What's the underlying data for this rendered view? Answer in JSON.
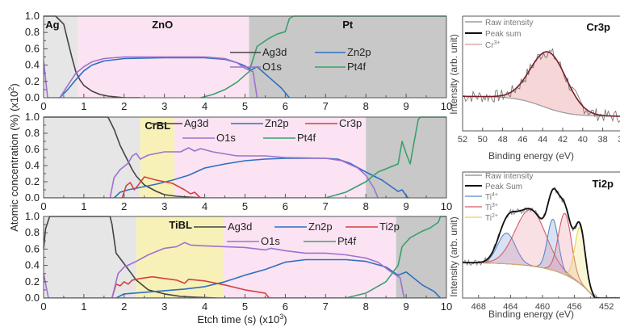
{
  "chart_data": [
    {
      "type": "line",
      "id": "depth-ag-zno-pt",
      "xlabel": "Etch time (s) (x10^3)",
      "ylabel": "Atomic concentration (%) (x10^2)",
      "xlim": [
        0,
        10
      ],
      "ylim": [
        0,
        1
      ],
      "xticks": [
        "0",
        "1",
        "2",
        "3",
        "4",
        "5",
        "6",
        "7",
        "8",
        "9",
        "10"
      ],
      "yticks": [
        "0.0",
        "0.2",
        "0.4",
        "0.6",
        "0.8",
        "1.0"
      ],
      "regions": [
        {
          "label": "Ag",
          "from": 0,
          "to": 0.85,
          "color": "#e6e6e6",
          "label_x": 0.22
        },
        {
          "label": "ZnO",
          "from": 0.85,
          "to": 5.1,
          "color": "#fbe3f3",
          "label_x": 2.95
        },
        {
          "label": "Pt",
          "from": 5.1,
          "to": 10,
          "color": "#c8c8c8",
          "label_x": 7.55
        }
      ],
      "legend": {
        "placement": "center-right",
        "entries": [
          "Ag3d",
          "Zn2p",
          "O1s",
          "Pt4f"
        ]
      },
      "series": [
        {
          "name": "Ag3d",
          "color": "#444444",
          "x": [
            0,
            0.1,
            0.3,
            0.5,
            0.6,
            0.7,
            0.8,
            0.9,
            1.0,
            1.2,
            1.4,
            1.6,
            1.8,
            2.0,
            2.4
          ],
          "y": [
            1.0,
            1.0,
            1.0,
            0.9,
            0.7,
            0.5,
            0.32,
            0.22,
            0.15,
            0.08,
            0.04,
            0.02,
            0.01,
            0.0,
            0.0
          ]
        },
        {
          "name": "Zn2p",
          "color": "#2e6fc0",
          "x": [
            0.4,
            0.6,
            0.8,
            1.0,
            1.2,
            1.5,
            2.0,
            3.0,
            4.0,
            4.5,
            4.8,
            5.0,
            5.15,
            5.3,
            5.6,
            5.9,
            6.1
          ],
          "y": [
            0.0,
            0.1,
            0.22,
            0.33,
            0.4,
            0.45,
            0.48,
            0.49,
            0.49,
            0.47,
            0.43,
            0.39,
            0.34,
            0.38,
            0.25,
            0.12,
            0.0
          ]
        },
        {
          "name": "O1s",
          "color": "#a070d0",
          "x": [
            0,
            0.1,
            0.4,
            0.6,
            0.8,
            1.0,
            1.2,
            1.5,
            2.0,
            3.0,
            4.0,
            4.5,
            4.8,
            5.0,
            5.2,
            5.3
          ],
          "y": [
            0.45,
            0.0,
            0.0,
            0.15,
            0.3,
            0.38,
            0.44,
            0.48,
            0.5,
            0.5,
            0.5,
            0.48,
            0.43,
            0.36,
            0.32,
            0.0
          ]
        },
        {
          "name": "Pt4f",
          "color": "#3aa06a",
          "x": [
            3.9,
            4.2,
            4.5,
            4.8,
            5.1,
            5.3,
            5.6,
            5.8,
            6.0,
            6.1,
            6.2,
            10
          ],
          "y": [
            0.0,
            0.04,
            0.1,
            0.19,
            0.32,
            0.63,
            0.73,
            0.78,
            0.81,
            0.97,
            1.0,
            1.0
          ]
        }
      ]
    },
    {
      "type": "line",
      "id": "depth-crbl",
      "xlim": [
        0,
        10
      ],
      "ylim": [
        0,
        1
      ],
      "xticks": [
        "0",
        "1",
        "2",
        "3",
        "4",
        "5",
        "6",
        "7",
        "8",
        "9",
        "10"
      ],
      "yticks": [
        "0.0",
        "0.2",
        "0.4",
        "0.6",
        "0.8",
        "1.0"
      ],
      "regions": [
        {
          "label": "",
          "from": 0,
          "to": 2.4,
          "color": "#e6e6e6"
        },
        {
          "label": "CrBL",
          "from": 2.4,
          "to": 3.25,
          "color": "#f7f1b7",
          "label_x": 2.83
        },
        {
          "label": "",
          "from": 3.25,
          "to": 8.0,
          "color": "#fbe3f3"
        },
        {
          "label": "",
          "from": 8.0,
          "to": 10,
          "color": "#c8c8c8"
        }
      ],
      "legend": {
        "placement": "top-center",
        "entries": [
          "Ag3d",
          "Zn2p",
          "Cr3p",
          "O1s",
          "Pt4f"
        ]
      },
      "series": [
        {
          "name": "Ag3d",
          "color": "#444444",
          "x": [
            0,
            1.6,
            1.75,
            1.9,
            2.0,
            2.1,
            2.2,
            2.3,
            2.5,
            2.8,
            3.0,
            3.3,
            3.6,
            4.0
          ],
          "y": [
            1.0,
            1.0,
            0.85,
            0.65,
            0.55,
            0.45,
            0.35,
            0.27,
            0.16,
            0.08,
            0.04,
            0.02,
            0.01,
            0.0
          ]
        },
        {
          "name": "Zn2p",
          "color": "#2e6fc0",
          "x": [
            1.75,
            1.9,
            2.1,
            2.4,
            2.8,
            3.2,
            3.6,
            4.0,
            4.5,
            5.0,
            5.5,
            6.0,
            7.0,
            7.3,
            7.6,
            8.0,
            8.4,
            8.8,
            8.9,
            9.0,
            9.05
          ],
          "y": [
            0.0,
            0.07,
            0.1,
            0.13,
            0.17,
            0.22,
            0.28,
            0.37,
            0.42,
            0.46,
            0.48,
            0.49,
            0.49,
            0.48,
            0.43,
            0.32,
            0.22,
            0.08,
            0.1,
            0.03,
            0.0
          ]
        },
        {
          "name": "Cr3p",
          "color": "#d44040",
          "x": [
            1.95,
            2.05,
            2.15,
            2.25,
            2.35,
            2.5,
            2.8,
            3.0,
            3.2,
            3.5,
            3.65,
            3.75,
            3.85,
            3.9
          ],
          "y": [
            0.0,
            0.15,
            0.19,
            0.1,
            0.16,
            0.26,
            0.22,
            0.2,
            0.18,
            0.1,
            0.05,
            0.07,
            0.02,
            0.0
          ]
        },
        {
          "name": "O1s",
          "color": "#a070d0",
          "x": [
            1.65,
            1.75,
            1.9,
            2.1,
            2.2,
            2.3,
            2.4,
            2.6,
            3.0,
            3.4,
            3.6,
            3.75,
            3.9,
            4.2,
            4.8,
            5.5,
            6.0,
            7.0,
            7.4,
            7.8,
            8.0,
            8.2,
            8.3
          ],
          "y": [
            0.0,
            0.25,
            0.35,
            0.43,
            0.52,
            0.55,
            0.48,
            0.53,
            0.57,
            0.57,
            0.62,
            0.58,
            0.61,
            0.57,
            0.52,
            0.52,
            0.5,
            0.49,
            0.46,
            0.37,
            0.28,
            0.12,
            0.0
          ]
        },
        {
          "name": "Pt4f",
          "color": "#3aa06a",
          "x": [
            0,
            7.0,
            7.5,
            8.0,
            8.3,
            8.6,
            8.8,
            8.9,
            9.0,
            9.1,
            9.2,
            9.3,
            9.35,
            10
          ],
          "y": [
            0.0,
            0.0,
            0.07,
            0.2,
            0.32,
            0.38,
            0.42,
            0.7,
            0.55,
            0.42,
            0.7,
            0.97,
            1.0,
            1.0
          ]
        }
      ]
    },
    {
      "type": "line",
      "id": "depth-tibl",
      "xlim": [
        0,
        10
      ],
      "ylim": [
        0,
        1
      ],
      "xticks": [
        "0",
        "1",
        "2",
        "3",
        "4",
        "5",
        "6",
        "7",
        "8",
        "9",
        "10"
      ],
      "yticks": [
        "0.0",
        "0.2",
        "0.4",
        "0.6",
        "0.8",
        "1.0"
      ],
      "regions": [
        {
          "label": "",
          "from": 0,
          "to": 2.3,
          "color": "#e6e6e6"
        },
        {
          "label": "TiBL",
          "from": 2.3,
          "to": 4.45,
          "color": "#f7f1b7",
          "label_x": 3.4
        },
        {
          "label": "",
          "from": 4.45,
          "to": 8.75,
          "color": "#fbe3f3"
        },
        {
          "label": "",
          "from": 8.75,
          "to": 10,
          "color": "#c8c8c8"
        }
      ],
      "legend": {
        "placement": "top-right",
        "entries": [
          "Ag3d",
          "Zn2p",
          "Ti2p",
          "O1s",
          "Pt4f"
        ]
      },
      "series": [
        {
          "name": "Ag3d",
          "color": "#444444",
          "x": [
            0,
            0.05,
            0.15,
            1.65,
            1.7,
            1.8,
            2.0,
            2.3,
            2.6,
            3.0,
            3.4,
            3.8,
            4.3
          ],
          "y": [
            0.6,
            0.85,
            1.0,
            1.0,
            0.9,
            0.55,
            0.42,
            0.22,
            0.1,
            0.05,
            0.02,
            0.01,
            0.0
          ]
        },
        {
          "name": "Zn2p",
          "color": "#2e6fc0",
          "x": [
            1.8,
            2.0,
            2.5,
            3.0,
            3.5,
            4.0,
            4.5,
            5.0,
            5.5,
            6.0,
            6.5,
            7.0,
            7.5,
            8.0,
            8.5,
            8.8,
            8.9,
            9.0,
            9.4,
            9.7,
            9.85
          ],
          "y": [
            0.0,
            0.05,
            0.07,
            0.09,
            0.11,
            0.14,
            0.2,
            0.28,
            0.35,
            0.44,
            0.47,
            0.47,
            0.47,
            0.45,
            0.38,
            0.28,
            0.3,
            0.32,
            0.16,
            0.08,
            0.0
          ]
        },
        {
          "name": "Ti2p",
          "color": "#d44040",
          "x": [
            1.7,
            1.8,
            1.9,
            2.0,
            2.1,
            2.2,
            2.4,
            2.7,
            3.0,
            3.3,
            3.5,
            3.6,
            4.0,
            4.5,
            5.0,
            5.5,
            5.6,
            10
          ],
          "y": [
            0.0,
            0.17,
            0.15,
            0.2,
            0.17,
            0.22,
            0.24,
            0.26,
            0.24,
            0.22,
            0.18,
            0.23,
            0.21,
            0.16,
            0.1,
            0.06,
            0.0,
            0.0
          ]
        },
        {
          "name": "O1s",
          "color": "#a070d0",
          "x": [
            0,
            0.12,
            1.7,
            1.85,
            2.0,
            2.3,
            2.6,
            3.0,
            3.3,
            3.5,
            3.65,
            4.0,
            4.5,
            5.0,
            5.5,
            5.65,
            6.0,
            6.5,
            7.0,
            7.5,
            8.0,
            8.3,
            8.6,
            8.85,
            8.95
          ],
          "y": [
            0.3,
            0.0,
            0.0,
            0.3,
            0.38,
            0.45,
            0.53,
            0.61,
            0.63,
            0.68,
            0.65,
            0.64,
            0.63,
            0.62,
            0.59,
            0.61,
            0.58,
            0.55,
            0.55,
            0.53,
            0.49,
            0.44,
            0.33,
            0.25,
            0.0
          ]
        },
        {
          "name": "Pt4f",
          "color": "#3aa06a",
          "x": [
            0,
            7.5,
            8.0,
            8.5,
            8.8,
            8.9,
            9.1,
            9.4,
            9.6,
            9.8,
            9.85,
            10
          ],
          "y": [
            0.0,
            0.0,
            0.06,
            0.2,
            0.4,
            0.63,
            0.74,
            0.82,
            0.86,
            0.93,
            1.0,
            1.0
          ]
        }
      ]
    },
    {
      "type": "line",
      "id": "xps-cr3p",
      "title": "Cr3p",
      "xlabel": "Binding energy (eV)",
      "ylabel": "Intensity (arb. unit)",
      "xlim": [
        52,
        37
      ],
      "xticks": [
        "52",
        "50",
        "48",
        "46",
        "44",
        "42",
        "40",
        "38",
        "36"
      ],
      "legend": {
        "placement": "top-left",
        "entries": [
          "Raw intensity",
          "Peak sum",
          "Cr3+"
        ]
      },
      "peaks": [
        {
          "name": "Cr3+",
          "center_eV": 43.4,
          "fwhm_eV": 4.2,
          "height": 0.62
        }
      ],
      "background": {
        "high_eV": 0.31,
        "low_eV": 0.0,
        "step_center_eV": 43.5
      }
    },
    {
      "type": "line",
      "id": "xps-ti2p",
      "title": "Ti2p",
      "xlabel": "Binding energy (eV)",
      "ylabel": "Intensity (arb. unit)",
      "xlim": [
        470,
        450
      ],
      "xticks": [
        "468",
        "464",
        "460",
        "456",
        "452"
      ],
      "legend": {
        "placement": "top-left",
        "entries": [
          "Raw intensity",
          "Peak Sum",
          "Ti4+",
          "Ti3+",
          "Ti2+"
        ]
      },
      "peaks": [
        {
          "name": "Ti4+",
          "center_eV": 464.5,
          "fwhm_eV": 2.6,
          "height": 0.3,
          "color": "#5a86c8"
        },
        {
          "name": "Ti3+",
          "center_eV": 461.5,
          "fwhm_eV": 4.5,
          "height": 0.55,
          "color": "#d45a6a"
        },
        {
          "name": "Ti4+",
          "center_eV": 458.7,
          "fwhm_eV": 1.6,
          "height": 0.5,
          "color": "#5a86c8"
        },
        {
          "name": "Ti3+",
          "center_eV": 457.2,
          "fwhm_eV": 1.9,
          "height": 0.6,
          "color": "#d45a6a"
        },
        {
          "name": "Ti2+",
          "center_eV": 455.3,
          "fwhm_eV": 1.5,
          "height": 0.55,
          "color": "#e3d84a"
        }
      ]
    }
  ],
  "labels": {
    "ylabel_main": "Atomic concentration (%) (x10",
    "ylabel_sup": "2",
    "ylabel_end": ")",
    "xlabel_main": "Etch time (s) (x10",
    "xlabel_sup": "3",
    "xlabel_end": ")",
    "cr_xlabel": "Binding energy (eV)",
    "ti_xlabel": "Binding energy (eV)",
    "cr_ylabel": "Intensity (arb. unit)",
    "ti_ylabel": "Intensity (arb. unit)",
    "cr_title": "Cr3p",
    "ti_title": "Ti2p",
    "cr_legend": [
      "Raw intensity",
      "Peak sum",
      "Cr"
    ],
    "cr_legend_sup": "3+",
    "ti_legend": [
      "Raw intensity",
      "Peak Sum",
      "Ti",
      "Ti",
      "Ti"
    ],
    "ti_legend_sup": [
      "",
      "",
      "4+",
      "3+",
      "2+"
    ]
  }
}
